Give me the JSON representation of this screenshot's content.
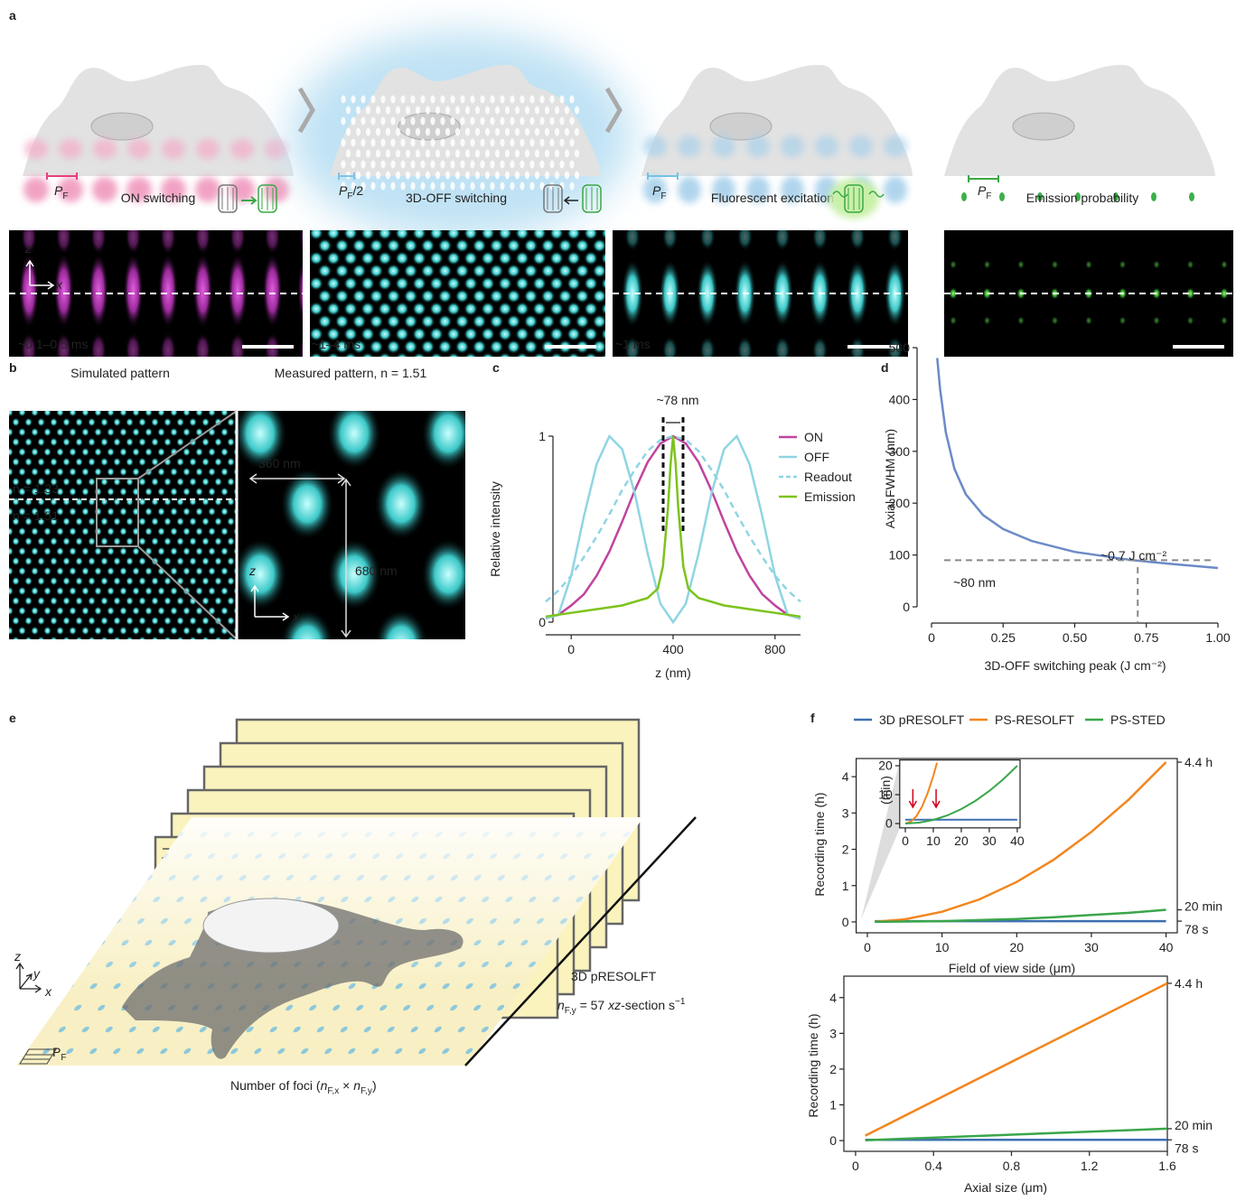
{
  "panel_labels": [
    "a",
    "b",
    "c",
    "d",
    "e",
    "f"
  ],
  "panel_a": {
    "steps": [
      {
        "scale": [
          "P",
          "F"
        ],
        "label": "ON switching",
        "time": "~0.1–0.5 ms"
      },
      {
        "scale": [
          "P",
          "F",
          "/2"
        ],
        "label": "3D-OFF switching",
        "time": "~1–4 ms"
      },
      {
        "scale": [
          "P",
          "F"
        ],
        "label": "Fluorescent excitation",
        "time": "~1 ms"
      },
      {
        "scale": [
          "P",
          "F"
        ],
        "label": "Emission probability"
      }
    ],
    "axes": {
      "z": "z",
      "x": "x"
    }
  },
  "panel_b": {
    "simulated_title": "Simulated pattern",
    "measured_title": "Measured pattern, n = 1.51",
    "upper_medium": "n = 1.33",
    "lower_medium": "n = 1.51",
    "lateral_period": "360 nm",
    "axial_period": "680 nm",
    "axes": {
      "z": "z",
      "x": "x"
    }
  },
  "panel_e": {
    "method": "3D pRESOLFT",
    "rate": [
      "n",
      "F,y",
      " = 57 ",
      "xz",
      "-section s",
      "−1"
    ],
    "foci": [
      "Number of foci (",
      "n",
      "F,x",
      " × ",
      "n",
      "F,y",
      ")"
    ],
    "scale": [
      "P",
      "F"
    ],
    "axes": {
      "z": "z",
      "y": "y",
      "x": "x"
    }
  },
  "chart_data": [
    {
      "type": "line",
      "xlabel": "z (nm)",
      "ylabel": "Relative intensity",
      "annotation": "~78 nm",
      "markers": [
        361,
        439
      ],
      "xlim": [
        -100,
        900
      ],
      "xticks": [
        0,
        400,
        800
      ],
      "ylim": [
        0,
        1
      ],
      "yticks": [
        0,
        1
      ],
      "legend": "upper right",
      "series": [
        {
          "name": "ON",
          "color": "#c0449e",
          "style": "solid",
          "x": [
            -100,
            -50,
            0,
            50,
            100,
            150,
            200,
            250,
            300,
            350,
            400,
            450,
            500,
            550,
            600,
            650,
            700,
            750,
            800,
            850,
            900
          ],
          "values": [
            0.02,
            0.04,
            0.09,
            0.15,
            0.25,
            0.38,
            0.54,
            0.71,
            0.86,
            0.96,
            1,
            0.96,
            0.86,
            0.71,
            0.54,
            0.38,
            0.25,
            0.15,
            0.09,
            0.04,
            0.02
          ]
        },
        {
          "name": "OFF",
          "color": "#8fd5e2",
          "style": "solid",
          "x": [
            -100,
            -50,
            0,
            50,
            100,
            150,
            200,
            250,
            300,
            350,
            400,
            450,
            500,
            550,
            600,
            650,
            700,
            750,
            800,
            850,
            900
          ],
          "values": [
            0.02,
            0.04,
            0.25,
            0.57,
            0.85,
            1,
            0.93,
            0.69,
            0.37,
            0.1,
            0,
            0.1,
            0.37,
            0.69,
            0.93,
            1,
            0.85,
            0.57,
            0.25,
            0.04,
            0.02
          ]
        },
        {
          "name": "Readout",
          "color": "#8fd5e2",
          "style": "dashed",
          "x": [
            -100,
            -50,
            0,
            50,
            100,
            150,
            200,
            250,
            300,
            350,
            400,
            450,
            500,
            550,
            600,
            650,
            700,
            750,
            800,
            850,
            900
          ],
          "values": [
            0.11,
            0.17,
            0.25,
            0.35,
            0.46,
            0.58,
            0.71,
            0.82,
            0.92,
            0.98,
            1,
            0.98,
            0.92,
            0.82,
            0.71,
            0.58,
            0.46,
            0.35,
            0.25,
            0.17,
            0.11
          ]
        },
        {
          "name": "Emission",
          "color": "#7dc31d",
          "style": "solid",
          "x": [
            -100,
            0,
            100,
            200,
            300,
            340,
            360,
            380,
            390,
            400,
            410,
            420,
            440,
            460,
            500,
            600,
            700,
            800,
            900
          ],
          "values": [
            0.03,
            0.05,
            0.07,
            0.09,
            0.13,
            0.18,
            0.3,
            0.62,
            0.85,
            1,
            0.85,
            0.62,
            0.3,
            0.18,
            0.13,
            0.09,
            0.07,
            0.05,
            0.03
          ]
        }
      ]
    },
    {
      "type": "line",
      "xlabel": "3D-OFF switching peak (J cm⁻²)",
      "ylabel": "Axial FWHM (nm)",
      "annotations": [
        "~80 nm",
        "~0.7 J cm⁻²"
      ],
      "ref_x": 0.72,
      "ref_y": 90,
      "xlim": [
        0,
        1
      ],
      "xticks": [
        0,
        0.25,
        {
          "value": 0.5,
          "label": "0.50"
        },
        0.75,
        {
          "value": 1,
          "label": "1.00"
        }
      ],
      "ylim": [
        0,
        500
      ],
      "yticks": [
        0,
        100,
        200,
        300,
        400,
        500
      ],
      "series": [
        {
          "color": "#6b8bc7",
          "x": [
            0.02,
            0.03,
            0.05,
            0.08,
            0.12,
            0.18,
            0.25,
            0.35,
            0.5,
            0.7,
            0.85,
            1
          ],
          "values": [
            480,
            420,
            337,
            266,
            217,
            177,
            150,
            127,
            106,
            90,
            82,
            75
          ]
        }
      ]
    },
    {
      "type": "line",
      "xlabel": "Field of view side (μm)",
      "ylabel": "Recording time (h)",
      "legend": "top",
      "xlim": [
        -1.5,
        41.5
      ],
      "xticks": [
        0,
        10,
        20,
        30,
        40
      ],
      "ylim": [
        -0.3,
        4.5
      ],
      "yticks": [
        0,
        1,
        2,
        3,
        4
      ],
      "end_labels": [
        {
          "value": 4.4,
          "label": "4.4 h"
        },
        {
          "value": 0.333,
          "label": "20 min"
        },
        {
          "value": 0.022,
          "label": "78 s"
        }
      ],
      "series": [
        {
          "name": "3D pRESOLFT",
          "color": "#3e70b2",
          "x": [
            1,
            40
          ],
          "values": [
            0.022,
            0.022
          ]
        },
        {
          "name": "PS-RESOLFT",
          "color": "#f2861e",
          "x": [
            1,
            5,
            10,
            15,
            20,
            25,
            30,
            35,
            40
          ],
          "values": [
            0.003,
            0.07,
            0.28,
            0.62,
            1.1,
            1.72,
            2.48,
            3.37,
            4.4
          ]
        },
        {
          "name": "PS-STED",
          "color": "#3aa64a",
          "x": [
            1,
            5,
            10,
            15,
            20,
            25,
            30,
            35,
            40
          ],
          "values": [
            0,
            0.01,
            0.02,
            0.05,
            0.08,
            0.13,
            0.19,
            0.25,
            0.333
          ]
        }
      ]
    },
    {
      "type": "line",
      "ylabel": "(min)",
      "xlim": [
        -2,
        41
      ],
      "xticks": [
        0,
        10,
        20,
        30,
        40
      ],
      "ylim": [
        -1.5,
        22
      ],
      "yticks": [
        0,
        10,
        20
      ],
      "arrows": [
        2.7,
        11
      ],
      "series": [
        {
          "color": "#3e70b2",
          "x": [
            0,
            40
          ],
          "values": [
            1.3,
            1.3
          ]
        },
        {
          "color": "#f2861e",
          "x": [
            0,
            2,
            4,
            6,
            8,
            10,
            11.3
          ],
          "values": [
            0,
            0.7,
            2.6,
            5.9,
            10.6,
            16.5,
            21
          ]
        },
        {
          "color": "#3aa64a",
          "x": [
            0,
            5,
            10,
            15,
            20,
            25,
            30,
            35,
            40
          ],
          "values": [
            0,
            0.31,
            1.25,
            2.81,
            5,
            7.81,
            11.25,
            15.3,
            20
          ]
        }
      ]
    },
    {
      "type": "line",
      "xlabel": "Axial size (μm)",
      "ylabel": "Recording time (h)",
      "xlim": [
        -0.06,
        1.6
      ],
      "xticks": [
        0,
        0.4,
        0.8,
        1.2,
        1.6
      ],
      "ylim": [
        -0.3,
        4.6
      ],
      "yticks": [
        0,
        1,
        2,
        3,
        4
      ],
      "end_labels": [
        {
          "value": 4.4,
          "label": "4.4 h"
        },
        {
          "value": 0.333,
          "label": "20 min"
        },
        {
          "value": 0.022,
          "label": "78 s"
        }
      ],
      "series": [
        {
          "color": "#3e70b2",
          "x": [
            0.05,
            1.6
          ],
          "values": [
            0.022,
            0.022
          ]
        },
        {
          "color": "#f2861e",
          "x": [
            0.05,
            1.6
          ],
          "values": [
            0.14,
            4.4
          ]
        },
        {
          "color": "#3aa64a",
          "x": [
            0.05,
            1.6
          ],
          "values": [
            0.01,
            0.333
          ]
        }
      ]
    }
  ]
}
